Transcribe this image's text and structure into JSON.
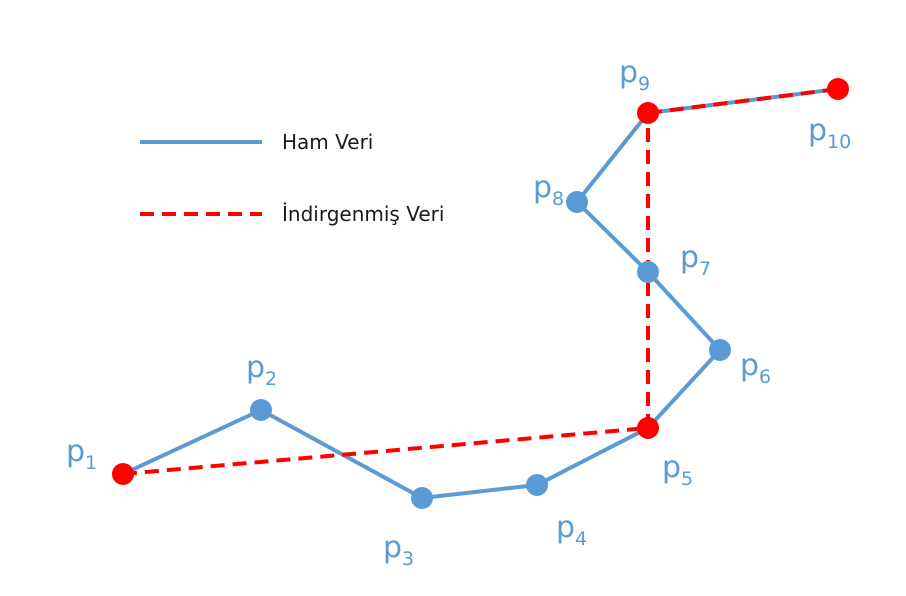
{
  "colors": {
    "raw": "#5b9bd5",
    "reduced": "#ff0000",
    "text": "#1a1a1a"
  },
  "legend": {
    "raw_label": "Ham Veri",
    "reduced_label": "İndirgenmiş Veri"
  },
  "points": [
    {
      "id": "p1",
      "base": "p",
      "sub": "1",
      "kept": true
    },
    {
      "id": "p2",
      "base": "p",
      "sub": "2",
      "kept": false
    },
    {
      "id": "p3",
      "base": "p",
      "sub": "3",
      "kept": false
    },
    {
      "id": "p4",
      "base": "p",
      "sub": "4",
      "kept": false
    },
    {
      "id": "p5",
      "base": "p",
      "sub": "5",
      "kept": true
    },
    {
      "id": "p6",
      "base": "p",
      "sub": "6",
      "kept": false
    },
    {
      "id": "p7",
      "base": "p",
      "sub": "7",
      "kept": false
    },
    {
      "id": "p8",
      "base": "p",
      "sub": "8",
      "kept": false
    },
    {
      "id": "p9",
      "base": "p",
      "sub": "9",
      "kept": true
    },
    {
      "id": "p10",
      "base": "p",
      "sub": "10",
      "kept": true
    }
  ]
}
